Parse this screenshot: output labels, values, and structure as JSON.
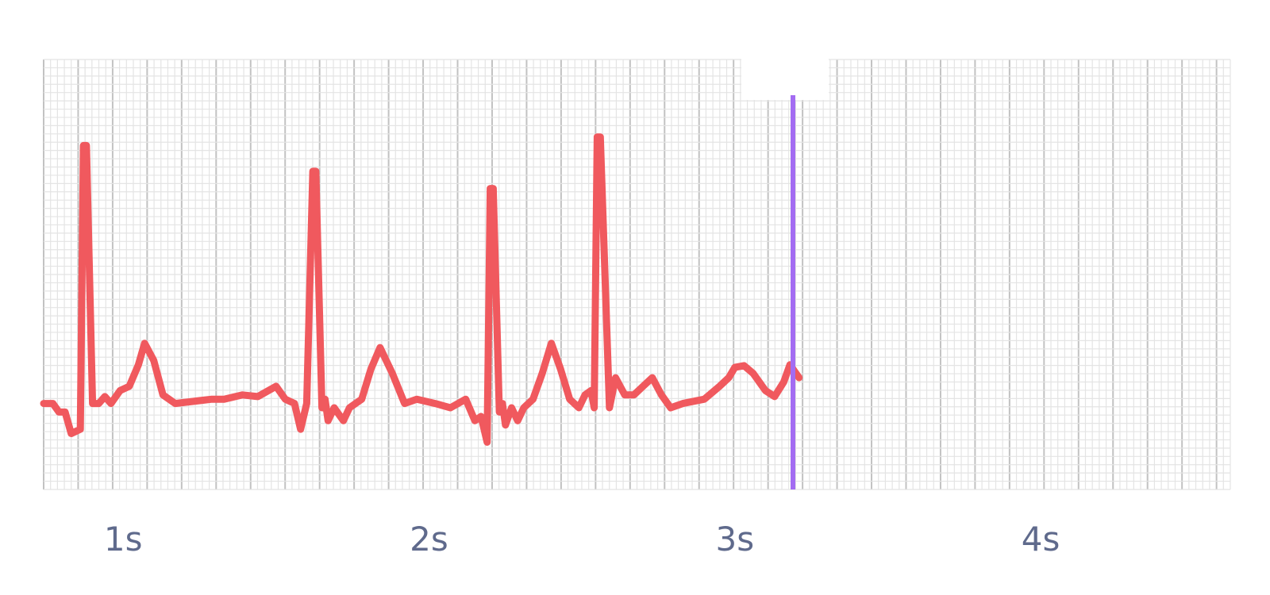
{
  "chart_data": {
    "type": "line",
    "title": "",
    "xlabel": "",
    "ylabel": "",
    "xlim": [
      0.74,
      4.62
    ],
    "ylim": [
      -1.0,
      4.0
    ],
    "grid": true,
    "x_ticks": [
      {
        "value": 1,
        "label": "1s"
      },
      {
        "value": 2,
        "label": "2s"
      },
      {
        "value": 3,
        "label": "3s"
      },
      {
        "value": 4,
        "label": "4s"
      }
    ],
    "cursor": {
      "x": 3.19
    },
    "series": [
      {
        "color": "#f0595e",
        "points": [
          [
            0.74,
            0.0
          ],
          [
            0.77,
            0.0
          ],
          [
            0.79,
            -0.1
          ],
          [
            0.81,
            -0.1
          ],
          [
            0.83,
            -0.35
          ],
          [
            0.86,
            -0.3
          ],
          [
            0.87,
            3.0
          ],
          [
            0.88,
            3.0
          ],
          [
            0.9,
            0.0
          ],
          [
            0.92,
            0.0
          ],
          [
            0.94,
            0.08
          ],
          [
            0.96,
            0.0
          ],
          [
            0.99,
            0.15
          ],
          [
            1.02,
            0.2
          ],
          [
            1.05,
            0.45
          ],
          [
            1.07,
            0.7
          ],
          [
            1.1,
            0.5
          ],
          [
            1.13,
            0.1
          ],
          [
            1.17,
            0.0
          ],
          [
            1.29,
            0.05
          ],
          [
            1.33,
            0.05
          ],
          [
            1.39,
            0.1
          ],
          [
            1.44,
            0.08
          ],
          [
            1.5,
            0.2
          ],
          [
            1.53,
            0.05
          ],
          [
            1.56,
            0.0
          ],
          [
            1.58,
            -0.3
          ],
          [
            1.6,
            0.0
          ],
          [
            1.62,
            2.7
          ],
          [
            1.63,
            2.7
          ],
          [
            1.65,
            -0.05
          ],
          [
            1.66,
            0.05
          ],
          [
            1.67,
            -0.2
          ],
          [
            1.69,
            -0.05
          ],
          [
            1.72,
            -0.2
          ],
          [
            1.74,
            -0.05
          ],
          [
            1.78,
            0.05
          ],
          [
            1.81,
            0.4
          ],
          [
            1.84,
            0.65
          ],
          [
            1.88,
            0.35
          ],
          [
            1.92,
            0.0
          ],
          [
            1.96,
            0.05
          ],
          [
            2.02,
            0.0
          ],
          [
            2.07,
            -0.05
          ],
          [
            2.12,
            0.05
          ],
          [
            2.15,
            -0.2
          ],
          [
            2.17,
            -0.15
          ],
          [
            2.19,
            -0.45
          ],
          [
            2.2,
            2.5
          ],
          [
            2.21,
            2.5
          ],
          [
            2.23,
            -0.1
          ],
          [
            2.24,
            0.0
          ],
          [
            2.25,
            -0.25
          ],
          [
            2.27,
            -0.05
          ],
          [
            2.29,
            -0.2
          ],
          [
            2.31,
            -0.05
          ],
          [
            2.34,
            0.05
          ],
          [
            2.37,
            0.35
          ],
          [
            2.4,
            0.7
          ],
          [
            2.43,
            0.4
          ],
          [
            2.46,
            0.05
          ],
          [
            2.49,
            -0.05
          ],
          [
            2.51,
            0.1
          ],
          [
            2.53,
            0.15
          ],
          [
            2.54,
            -0.05
          ],
          [
            2.55,
            3.1
          ],
          [
            2.56,
            3.1
          ],
          [
            2.59,
            -0.05
          ],
          [
            2.61,
            0.3
          ],
          [
            2.64,
            0.1
          ],
          [
            2.67,
            0.1
          ],
          [
            2.7,
            0.2
          ],
          [
            2.73,
            0.3
          ],
          [
            2.76,
            0.1
          ],
          [
            2.79,
            -0.05
          ],
          [
            2.83,
            0.0
          ],
          [
            2.9,
            0.05
          ],
          [
            2.95,
            0.2
          ],
          [
            2.98,
            0.3
          ],
          [
            3.0,
            0.42
          ],
          [
            3.03,
            0.44
          ],
          [
            3.06,
            0.35
          ],
          [
            3.08,
            0.25
          ],
          [
            3.1,
            0.15
          ],
          [
            3.13,
            0.08
          ],
          [
            3.16,
            0.25
          ],
          [
            3.18,
            0.45
          ],
          [
            3.2,
            0.35
          ],
          [
            3.21,
            0.3
          ]
        ]
      }
    ]
  }
}
